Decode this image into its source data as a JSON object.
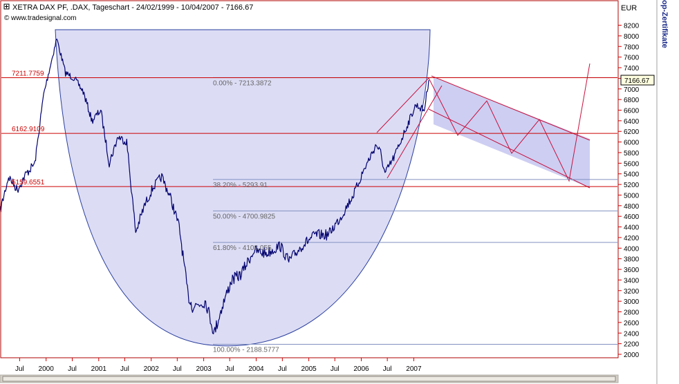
{
  "header": {
    "title": "XETRA DAX PF, .DAX, Tageschart - 24/02/1999 - 10/04/2007 - 7166.67",
    "source": "www.tradesignal.com",
    "side_text": "op-Zertifikate"
  },
  "chart_data": {
    "type": "line",
    "title": "XETRA DAX PF, .DAX, Tageschart - 24/02/1999 - 10/04/2007 - 7166.67",
    "ylabel": "EUR",
    "ylim": [
      1900,
      8700
    ],
    "y_ticks": [
      2000,
      2200,
      2400,
      2600,
      2800,
      3000,
      3200,
      3400,
      3600,
      3800,
      4000,
      4200,
      4400,
      4600,
      4800,
      5000,
      5200,
      5400,
      5600,
      5800,
      6000,
      6200,
      6400,
      6600,
      6800,
      7000,
      7200,
      7400,
      7600,
      7800,
      8000,
      8200
    ],
    "x_ticks": [
      "Jul",
      "2000",
      "Jul",
      "2001",
      "Jul",
      "2002",
      "Jul",
      "2003",
      "Jul",
      "2004",
      "Jul",
      "2005",
      "Jul",
      "2006",
      "Jul",
      "2007"
    ],
    "last_price": "7166.67",
    "series": [
      {
        "x": [
          "1999-02",
          "1999-04",
          "1999-06",
          "1999-08",
          "1999-10",
          "1999-12",
          "2000-03",
          "2000-05",
          "2000-07",
          "2000-09",
          "2000-11",
          "2001-01",
          "2001-03",
          "2001-05",
          "2001-07",
          "2001-09",
          "2001-11",
          "2002-01",
          "2002-03",
          "2002-05",
          "2002-07",
          "2002-09",
          "2002-10",
          "2003-01",
          "2003-03",
          "2003-05",
          "2003-07",
          "2003-09",
          "2003-12",
          "2004-03",
          "2004-06",
          "2004-08",
          "2004-11",
          "2005-02",
          "2005-05",
          "2005-08",
          "2005-11",
          "2006-01",
          "2006-04",
          "2006-05",
          "2006-06",
          "2006-08",
          "2006-10",
          "2006-12",
          "2007-01",
          "2007-03",
          "2007-04"
        ],
        "values": [
          4700,
          5350,
          5100,
          5400,
          5600,
          6900,
          7950,
          7300,
          7200,
          6950,
          6400,
          6600,
          5600,
          6100,
          6000,
          4300,
          4800,
          5150,
          5350,
          4950,
          4400,
          3100,
          2900,
          3000,
          2400,
          2950,
          3400,
          3500,
          3950,
          3900,
          4050,
          3750,
          4050,
          4250,
          4250,
          4600,
          5050,
          5450,
          5950,
          5800,
          5400,
          5700,
          6100,
          6500,
          6700,
          6600,
          7166.67
        ]
      }
    ],
    "price_lines": [
      {
        "label": "7211.7759",
        "value": 7211.7759
      },
      {
        "label": "6162.9109",
        "value": 6162.9109
      },
      {
        "label": "5159.6551",
        "value": 5159.6551
      }
    ],
    "fibonacci": [
      {
        "label": "0.00% - 7213.3872",
        "value": 7213.3872
      },
      {
        "label": "38.20% - 5293.91",
        "value": 5293.91
      },
      {
        "label": "50.00% - 4700.9825",
        "value": 4700.9825
      },
      {
        "label": "61.80% - 4108.055",
        "value": 4108.055
      },
      {
        "label": "100.00% - 2188.5777",
        "value": 2188.5777
      }
    ],
    "grid": false
  },
  "colors": {
    "series": "#00006e",
    "bowl_fill": "#dcdcf5",
    "bowl_stroke": "#2a3f9e",
    "price_line": "#cc0000",
    "fib_line": "#8090c0",
    "channel_fill": "#c4c6f0",
    "channel_stroke": "#c8103c",
    "axis": "#cc0000",
    "frame": "#b00000"
  }
}
